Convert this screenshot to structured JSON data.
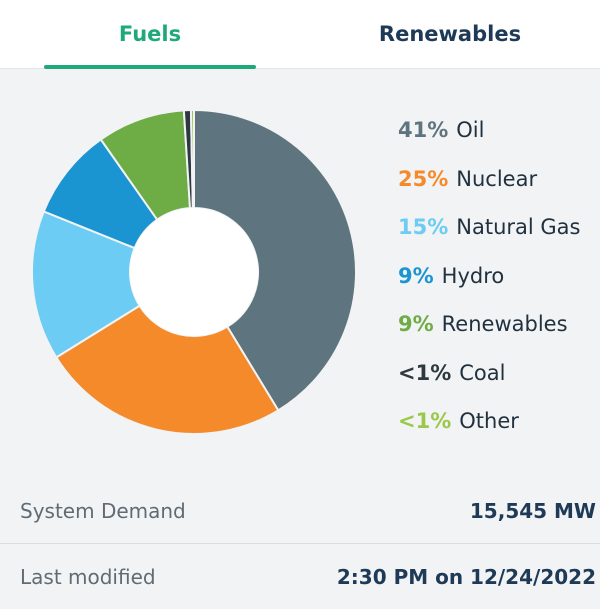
{
  "tabs": [
    {
      "label": "Fuels",
      "active": true
    },
    {
      "label": "Renewables",
      "active": false
    }
  ],
  "chart_data": {
    "type": "pie",
    "donut": true,
    "slices": [
      {
        "label": "Oil",
        "pct_label": "41%",
        "value": 41.5,
        "color": "#5e747e"
      },
      {
        "label": "Nuclear",
        "pct_label": "25%",
        "value": 25,
        "color": "#f58a2b"
      },
      {
        "label": "Natural Gas",
        "pct_label": "15%",
        "value": 15,
        "color": "#6cccf3"
      },
      {
        "label": "Hydro",
        "pct_label": "9%",
        "value": 9.2,
        "color": "#1b95d2"
      },
      {
        "label": "Renewables",
        "pct_label": "9%",
        "value": 8.8,
        "color": "#6eac45"
      },
      {
        "label": "Coal",
        "pct_label": "<1%",
        "value": 0.7,
        "color": "#2d3940"
      },
      {
        "label": "Other",
        "pct_label": "<1%",
        "value": 0.3,
        "color": "#9bc84a"
      }
    ],
    "legend_position": "right"
  },
  "summary": {
    "system_demand_label": "System Demand",
    "system_demand_value": "15,545 MW",
    "last_modified_label": "Last modified",
    "last_modified_value": "2:30 PM on 12/24/2022"
  },
  "colors": {
    "accent": "#1fa97b",
    "dark_text": "#1e3a57",
    "background": "#f1f3f4"
  }
}
